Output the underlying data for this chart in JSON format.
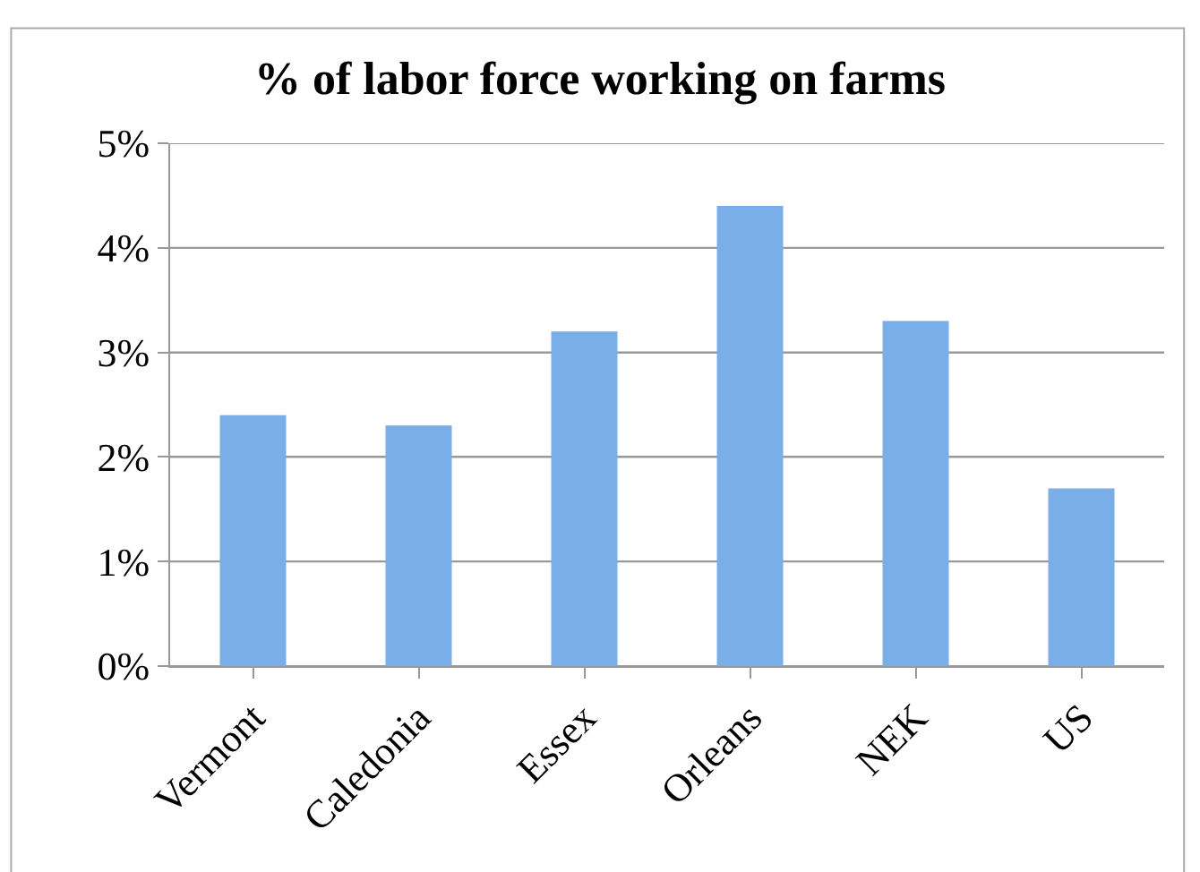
{
  "chart_data": {
    "type": "bar",
    "title": "% of labor force working on farms",
    "categories": [
      "Vermont",
      "Caledonia",
      "Essex",
      "Orleans",
      "NEK",
      "US"
    ],
    "values": [
      2.4,
      2.3,
      3.2,
      4.4,
      3.3,
      1.7
    ],
    "color": "#7aaee8",
    "ylim": [
      0,
      5
    ],
    "yticks": [
      {
        "value": 0,
        "label": "0%"
      },
      {
        "value": 1,
        "label": "1%"
      },
      {
        "value": 2,
        "label": "2%"
      },
      {
        "value": 3,
        "label": "3%"
      },
      {
        "value": 4,
        "label": "4%"
      },
      {
        "value": 5,
        "label": "5%"
      }
    ],
    "grid": "y"
  }
}
